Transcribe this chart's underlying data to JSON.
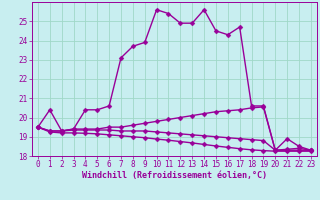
{
  "background_color": "#c8eef0",
  "grid_color": "#a0d8c8",
  "line_color": "#990099",
  "x_hours": [
    0,
    1,
    2,
    3,
    4,
    5,
    6,
    7,
    8,
    9,
    10,
    11,
    12,
    13,
    14,
    15,
    16,
    17,
    18,
    19,
    20,
    21,
    22,
    23
  ],
  "series": {
    "temp": [
      19.5,
      20.4,
      19.3,
      19.4,
      20.4,
      20.4,
      20.6,
      23.1,
      23.7,
      23.9,
      25.6,
      25.4,
      24.9,
      24.9,
      25.6,
      24.5,
      24.3,
      24.7,
      20.6,
      20.6,
      18.3,
      18.9,
      18.5,
      18.3
    ],
    "windchill1": [
      19.5,
      19.3,
      19.3,
      19.4,
      19.4,
      19.4,
      19.5,
      19.5,
      19.6,
      19.7,
      19.8,
      19.9,
      20.0,
      20.1,
      20.2,
      20.3,
      20.35,
      20.4,
      20.5,
      20.55,
      18.3,
      18.35,
      18.4,
      18.3
    ],
    "windchill2": [
      19.5,
      19.3,
      19.3,
      19.35,
      19.35,
      19.35,
      19.35,
      19.3,
      19.3,
      19.3,
      19.25,
      19.2,
      19.15,
      19.1,
      19.05,
      19.0,
      18.95,
      18.9,
      18.85,
      18.8,
      18.3,
      18.3,
      18.3,
      18.3
    ],
    "windchill3": [
      19.5,
      19.25,
      19.2,
      19.2,
      19.18,
      19.15,
      19.1,
      19.05,
      19.0,
      18.95,
      18.88,
      18.82,
      18.75,
      18.68,
      18.6,
      18.52,
      18.45,
      18.38,
      18.32,
      18.28,
      18.25,
      18.25,
      18.25,
      18.25
    ]
  },
  "ylim": [
    18,
    26
  ],
  "yticks": [
    18,
    19,
    20,
    21,
    22,
    23,
    24,
    25
  ],
  "xticks": [
    0,
    1,
    2,
    3,
    4,
    5,
    6,
    7,
    8,
    9,
    10,
    11,
    12,
    13,
    14,
    15,
    16,
    17,
    18,
    19,
    20,
    21,
    22,
    23
  ],
  "xlabel": "Windchill (Refroidissement éolien,°C)",
  "markersize": 2.5,
  "linewidth": 1.0,
  "tick_fontsize": 5.5,
  "xlabel_fontsize": 6.0
}
